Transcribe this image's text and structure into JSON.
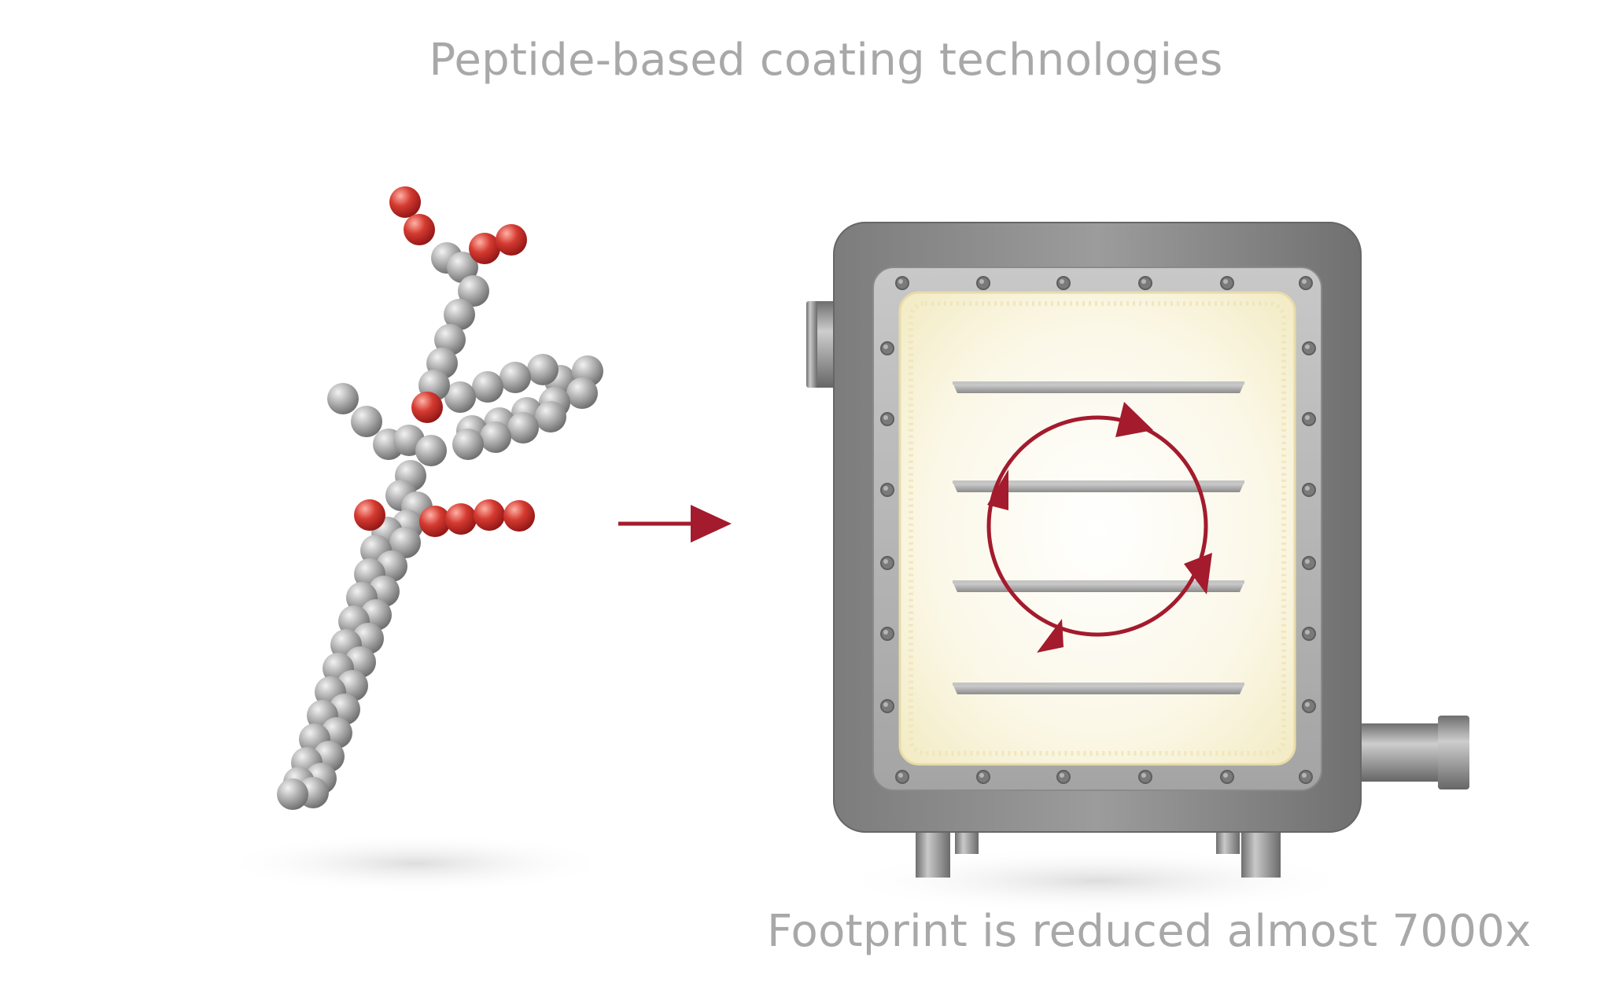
{
  "title": "Peptide-based coating technologies",
  "caption": "Footprint is reduced almost 7000x",
  "colors": {
    "text": "#a8a8a8",
    "accent_red": "#a31b2d",
    "atom_gray": "#9a9a9a",
    "atom_red": "#c0392b",
    "chamber_frame": "#8a8a8a",
    "chamber_interior": "#fbf7de"
  },
  "icons": {
    "molecule": "peptide-molecule-icon",
    "process_arrow": "right-arrow-icon",
    "chamber": "coating-chamber-icon",
    "cycle": "circular-arrows-icon"
  }
}
